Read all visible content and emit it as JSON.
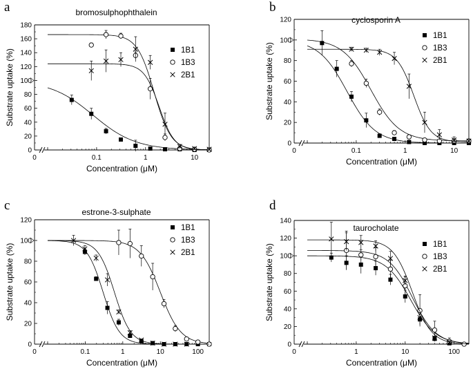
{
  "chart_data": [
    {
      "type": "scatter",
      "panel": "a",
      "title": "bromosulphophthalein",
      "xlabel": "Concentration (μM)",
      "ylabel": "Substrate uptake (%)",
      "xscale": "log",
      "xlim": [
        0.01,
        20
      ],
      "ylim": [
        0,
        180
      ],
      "xticks": [
        0.1,
        1,
        10
      ],
      "xtick_labels": [
        "0.1",
        "1",
        "10"
      ],
      "x_zero_label": "0",
      "yticks": [
        0,
        20,
        40,
        60,
        80,
        100,
        120,
        140,
        160,
        180
      ],
      "ytick_labels": [
        "0",
        "20",
        "40",
        "60",
        "80",
        "100",
        "120",
        "140",
        "160",
        "180"
      ],
      "axis_break": true,
      "legend_position": "right",
      "series": [
        {
          "name": "1B1",
          "marker": "square",
          "x": [
            0.031,
            0.078,
            0.156,
            0.313,
            0.625,
            1.25,
            2.5,
            5,
            10,
            20
          ],
          "y": [
            72,
            52,
            27,
            15,
            6,
            2,
            1,
            1,
            0,
            0
          ],
          "err": [
            7,
            8,
            4,
            2,
            8,
            2,
            1,
            1,
            1,
            1
          ],
          "fit": {
            "top": 100,
            "bottom": 0,
            "ic50": 0.085,
            "hill": 1.0
          }
        },
        {
          "name": "1B3",
          "marker": "circle",
          "x": [
            0.078,
            0.156,
            0.313,
            0.625,
            1.25,
            2.5,
            5,
            10,
            20
          ],
          "y": [
            151,
            166,
            164,
            136,
            88,
            18,
            2,
            1,
            0
          ],
          "err": [
            3,
            6,
            4,
            5,
            15,
            5,
            3,
            1,
            1
          ],
          "fit": {
            "top": 166,
            "bottom": 0,
            "ic50": 1.5,
            "hill": 2.5
          }
        },
        {
          "name": "2B1",
          "marker": "cross",
          "x": [
            0.078,
            0.156,
            0.313,
            0.625,
            1.25,
            2.5,
            5,
            10,
            20
          ],
          "y": [
            114,
            128,
            130,
            145,
            126,
            37,
            5,
            2,
            1
          ],
          "err": [
            14,
            16,
            10,
            18,
            10,
            16,
            3,
            2,
            2
          ],
          "fit": {
            "top": 124,
            "bottom": 0,
            "ic50": 1.9,
            "hill": 2.8
          }
        }
      ]
    },
    {
      "type": "scatter",
      "panel": "b",
      "title": "cyclosporin A",
      "xlabel": "Concentration (μM)",
      "ylabel": "Substrate uptake (%)",
      "xscale": "log",
      "xlim": [
        0.01,
        20
      ],
      "ylim": [
        0,
        120
      ],
      "xticks": [
        0.1,
        1,
        10
      ],
      "xtick_labels": [
        "0.1",
        "1",
        "10"
      ],
      "x_zero_label": "0",
      "yticks": [
        0,
        20,
        40,
        60,
        80,
        100,
        120
      ],
      "ytick_labels": [
        "0",
        "20",
        "40",
        "60",
        "80",
        "100",
        "120"
      ],
      "axis_break": true,
      "legend_position": "top-right",
      "series": [
        {
          "name": "1B1",
          "marker": "square",
          "x": [
            0.02,
            0.04,
            0.08,
            0.16,
            0.3,
            0.6,
            1.2,
            2.5,
            5,
            10,
            20
          ],
          "y": [
            97,
            72,
            45,
            22,
            7,
            4,
            1,
            0,
            0,
            0,
            0
          ],
          "err": [
            12,
            8,
            5,
            7,
            2,
            1,
            1,
            1,
            1,
            1,
            1
          ],
          "fit": {
            "top": 100,
            "bottom": 0,
            "ic50": 0.065,
            "hill": 1.5
          }
        },
        {
          "name": "1B3",
          "marker": "circle",
          "x": [
            0.08,
            0.16,
            0.3,
            0.6,
            1.2,
            2.5,
            5,
            10,
            20
          ],
          "y": [
            77,
            58,
            30,
            10,
            6,
            3,
            2,
            2,
            2
          ],
          "err": [
            3,
            4,
            3,
            2,
            2,
            1,
            1,
            1,
            1
          ],
          "fit": {
            "top": 101,
            "bottom": 2,
            "ic50": 0.2,
            "hill": 1.5
          }
        },
        {
          "name": "2B1",
          "marker": "cross",
          "x": [
            0.08,
            0.16,
            0.3,
            0.6,
            1.2,
            2.5,
            5,
            10,
            20
          ],
          "y": [
            91,
            90,
            88,
            82,
            55,
            20,
            8,
            3,
            2
          ],
          "err": [
            2,
            2,
            3,
            6,
            12,
            10,
            5,
            3,
            2
          ],
          "fit": {
            "top": 91,
            "bottom": 1,
            "ic50": 1.5,
            "hill": 2.5
          }
        }
      ]
    },
    {
      "type": "scatter",
      "panel": "c",
      "title": "estrone-3-sulphate",
      "xlabel": "Concentration (μM)",
      "ylabel": "Substrate uptake (%)",
      "xscale": "log",
      "xlim": [
        0.01,
        200
      ],
      "ylim": [
        0,
        120
      ],
      "xticks": [
        0.1,
        1,
        10,
        100
      ],
      "xtick_labels": [
        "0.1",
        "1",
        "10",
        "100"
      ],
      "x_zero_label": "0",
      "yticks": [
        0,
        20,
        40,
        60,
        80,
        100,
        120
      ],
      "ytick_labels": [
        "0",
        "20",
        "40",
        "60",
        "80",
        "100",
        "120"
      ],
      "axis_break": true,
      "legend_position": "top-right",
      "series": [
        {
          "name": "1B1",
          "marker": "square",
          "x": [
            0.098,
            0.195,
            0.39,
            0.78,
            1.56,
            3.13,
            6.25,
            12.5,
            25,
            50,
            100,
            200
          ],
          "y": [
            89,
            63,
            35,
            21,
            8,
            3,
            1,
            0,
            0,
            0,
            0,
            0
          ],
          "err": [
            3,
            2,
            6,
            3,
            2,
            1,
            1,
            1,
            1,
            1,
            1,
            1
          ],
          "fit": {
            "top": 100,
            "bottom": 0,
            "ic50": 0.3,
            "hill": 2.0
          }
        },
        {
          "name": "1B3",
          "marker": "circle",
          "x": [
            0.78,
            1.56,
            3.13,
            6.25,
            12.5,
            25,
            50,
            100,
            200
          ],
          "y": [
            98,
            97,
            85,
            65,
            39,
            15,
            5,
            2,
            0
          ],
          "err": [
            12,
            14,
            10,
            13,
            4,
            3,
            1,
            1,
            1
          ],
          "fit": {
            "top": 100,
            "bottom": 0,
            "ic50": 10,
            "hill": 1.6
          }
        },
        {
          "name": "2B1",
          "marker": "cross",
          "x": [
            0.049,
            0.098,
            0.195,
            0.39,
            0.78,
            1.56,
            3.13,
            6.25,
            12.5,
            25,
            50
          ],
          "y": [
            100,
            92,
            83,
            62,
            31,
            11,
            4,
            1,
            0,
            0,
            0
          ],
          "err": [
            5,
            3,
            3,
            6,
            2,
            2,
            1,
            1,
            1,
            1,
            1
          ],
          "fit": {
            "top": 100,
            "bottom": 0,
            "ic50": 0.6,
            "hill": 2.0
          }
        }
      ]
    },
    {
      "type": "scatter",
      "panel": "d",
      "title": "taurocholate",
      "xlabel": "Concentration (μM)",
      "ylabel": "Substrate uptake (%)",
      "xscale": "log",
      "xlim": [
        0.1,
        200
      ],
      "ylim": [
        0,
        140
      ],
      "xticks": [
        1,
        10,
        100
      ],
      "xtick_labels": [
        "1",
        "10",
        "100"
      ],
      "x_zero_label": "0",
      "yticks": [
        0,
        20,
        40,
        60,
        80,
        100,
        120,
        140
      ],
      "ytick_labels": [
        "0",
        "20",
        "40",
        "60",
        "80",
        "100",
        "120",
        "140"
      ],
      "axis_break": true,
      "legend_position": "right",
      "series": [
        {
          "name": "1B1",
          "marker": "square",
          "x": [
            0.31,
            0.63,
            1.25,
            2.5,
            5,
            10,
            20,
            40,
            80
          ],
          "y": [
            98,
            92,
            90,
            86,
            73,
            54,
            28,
            6,
            1
          ],
          "err": [
            5,
            8,
            10,
            8,
            6,
            7,
            6,
            3,
            2
          ],
          "fit": {
            "top": 100,
            "bottom": 0,
            "ic50": 13,
            "hill": 1.7
          }
        },
        {
          "name": "1B3",
          "marker": "circle",
          "x": [
            0.63,
            1.25,
            2.5,
            5,
            10,
            20,
            40,
            80,
            160
          ],
          "y": [
            106,
            101,
            99,
            85,
            66,
            38,
            16,
            3,
            0
          ],
          "err": [
            22,
            6,
            10,
            10,
            10,
            18,
            10,
            4,
            2
          ],
          "fit": {
            "top": 106,
            "bottom": 0,
            "ic50": 14,
            "hill": 1.8
          }
        },
        {
          "name": "2B1",
          "marker": "cross",
          "x": [
            0.31,
            0.63,
            1.25,
            2.5,
            5,
            10,
            20,
            40,
            80
          ],
          "y": [
            119,
            116,
            115,
            111,
            97,
            72,
            30,
            7,
            2
          ],
          "err": [
            19,
            10,
            8,
            6,
            8,
            5,
            4,
            2,
            2
          ],
          "fit": {
            "top": 118,
            "bottom": 0,
            "ic50": 14,
            "hill": 2.2
          }
        }
      ]
    }
  ]
}
